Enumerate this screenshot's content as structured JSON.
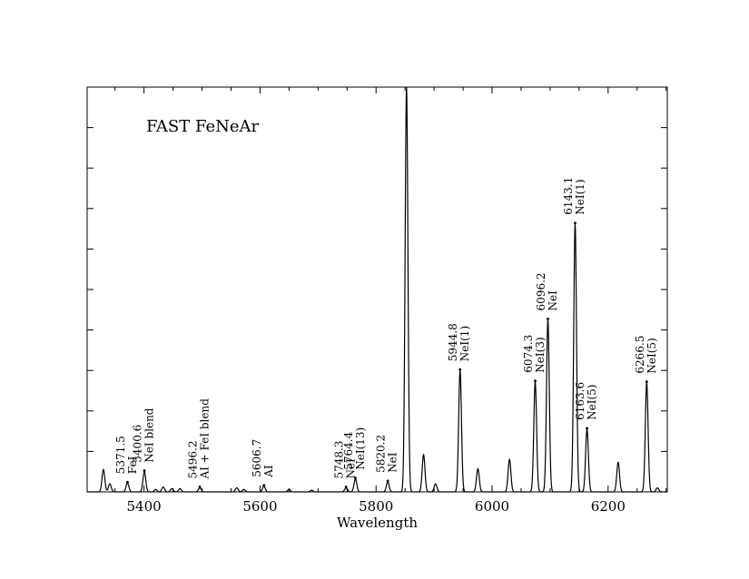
{
  "chart_data": {
    "type": "line",
    "title": "FAST FeNeAr",
    "xlabel": "Wavelength",
    "ylabel": "",
    "xlim": [
      5302,
      6302
    ],
    "ylim": [
      0,
      1
    ],
    "x_ticks": [
      5400,
      5600,
      5800,
      6000,
      6200
    ],
    "x_tick_labels": [
      "5400",
      "5600",
      "5800",
      "6000",
      "6200"
    ],
    "y_ticks": [
      0.1,
      0.2,
      0.3,
      0.4,
      0.5,
      0.6,
      0.7,
      0.8,
      0.9
    ],
    "grid": false,
    "series": [
      {
        "kind": "emission-lines",
        "baseline": 0.0,
        "lines": [
          {
            "x": 5330.0,
            "y": 0.055
          },
          {
            "x": 5341.1,
            "y": 0.02
          },
          {
            "x": 5371.5,
            "y": 0.022
          },
          {
            "x": 5400.6,
            "y": 0.05
          },
          {
            "x": 5420.0,
            "y": 0.006
          },
          {
            "x": 5433.0,
            "y": 0.012
          },
          {
            "x": 5448.0,
            "y": 0.008
          },
          {
            "x": 5462.0,
            "y": 0.008
          },
          {
            "x": 5496.2,
            "y": 0.01
          },
          {
            "x": 5560.0,
            "y": 0.01
          },
          {
            "x": 5572.0,
            "y": 0.006
          },
          {
            "x": 5606.7,
            "y": 0.014
          },
          {
            "x": 5650.0,
            "y": 0.006
          },
          {
            "x": 5689.0,
            "y": 0.004
          },
          {
            "x": 5748.3,
            "y": 0.01
          },
          {
            "x": 5764.4,
            "y": 0.032
          },
          {
            "x": 5820.2,
            "y": 0.025
          },
          {
            "x": 5852.5,
            "y": 1.0
          },
          {
            "x": 5881.9,
            "y": 0.092
          },
          {
            "x": 5902.5,
            "y": 0.02
          },
          {
            "x": 5944.8,
            "y": 0.3
          },
          {
            "x": 5975.5,
            "y": 0.057
          },
          {
            "x": 6030.0,
            "y": 0.08
          },
          {
            "x": 6074.3,
            "y": 0.272
          },
          {
            "x": 6096.2,
            "y": 0.425
          },
          {
            "x": 6143.1,
            "y": 0.662
          },
          {
            "x": 6163.6,
            "y": 0.155
          },
          {
            "x": 6217.3,
            "y": 0.073
          },
          {
            "x": 6266.5,
            "y": 0.27
          },
          {
            "x": 6285.0,
            "y": 0.01
          }
        ]
      }
    ],
    "annotations": [
      {
        "x": 5371.5,
        "y": 0.022,
        "lines": [
          "5371.5",
          "FeI"
        ]
      },
      {
        "x": 5400.6,
        "y": 0.05,
        "lines": [
          "5400.6",
          "NeI blend"
        ]
      },
      {
        "x": 5496.2,
        "y": 0.01,
        "lines": [
          "5496.2",
          "AI + FeI blend"
        ]
      },
      {
        "x": 5606.7,
        "y": 0.014,
        "lines": [
          "5606.7",
          "AI"
        ]
      },
      {
        "x": 5748.3,
        "y": 0.01,
        "lines": [
          "5748.3",
          "NeI"
        ]
      },
      {
        "x": 5764.4,
        "y": 0.032,
        "lines": [
          "5764.4",
          "NeI(13)"
        ]
      },
      {
        "x": 5820.2,
        "y": 0.025,
        "lines": [
          "5820.2",
          "NeI"
        ]
      },
      {
        "x": 5944.8,
        "y": 0.3,
        "lines": [
          "5944.8",
          "NeI(1)"
        ]
      },
      {
        "x": 6074.3,
        "y": 0.272,
        "lines": [
          "6074.3",
          "NeI(3)"
        ]
      },
      {
        "x": 6096.2,
        "y": 0.425,
        "lines": [
          "6096.2",
          "NeI"
        ]
      },
      {
        "x": 6143.1,
        "y": 0.662,
        "lines": [
          "6143.1",
          "NeI(1)"
        ]
      },
      {
        "x": 6163.6,
        "y": 0.155,
        "lines": [
          "6163.6",
          "NeI(5)"
        ]
      },
      {
        "x": 6266.5,
        "y": 0.27,
        "lines": [
          "6266.5",
          "NeI(5)"
        ]
      }
    ]
  }
}
